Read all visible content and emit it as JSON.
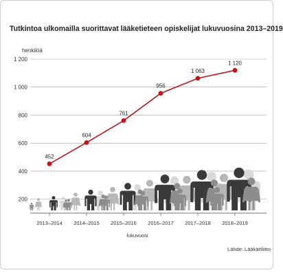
{
  "chart_data": {
    "type": "line",
    "title": "Tutkintoa ulkomailla suorittavat lääketieteen opiskelijat lukuvuosina 2013–2019",
    "ylabel": "henkilöä",
    "xlabel": "lukuvuosi",
    "source": "Lähde: Lääkäriliitto",
    "categories": [
      "2013–2014",
      "2014–2015",
      "2015–2016",
      "2016–2017",
      "2017–2018",
      "2018–2019"
    ],
    "values": [
      452,
      604,
      761,
      956,
      1063,
      1120
    ],
    "value_labels": [
      "452",
      "604",
      "761",
      "956",
      "1 063",
      "1 120"
    ],
    "yticks": [
      200,
      400,
      600,
      800,
      1000,
      1200
    ],
    "ytick_labels": [
      "200",
      "400",
      "600",
      "800",
      "1 000",
      "1 200"
    ],
    "ylim": [
      100,
      1200
    ],
    "line_color": "#c0141f",
    "figure_colors": [
      "#3a3a3a",
      "#8d8d8d",
      "#b7b7b7",
      "#d9d9d9"
    ]
  }
}
